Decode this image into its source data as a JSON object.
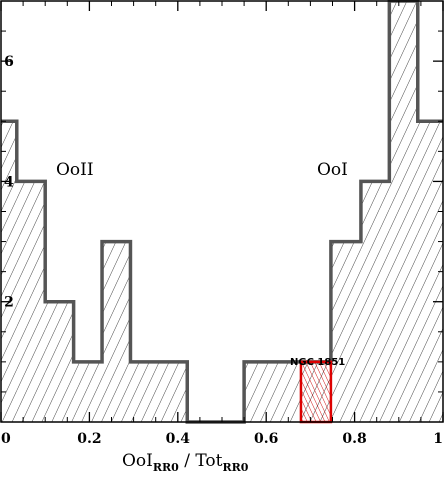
{
  "chart_data": {
    "type": "bar",
    "xlim": [
      0,
      1
    ],
    "ylim": [
      0,
      7.0
    ],
    "x_ticks": [
      0,
      0.2,
      0.4,
      0.6,
      0.8,
      1
    ],
    "x_tick_labels": [
      "0",
      "0.2",
      "0.4",
      "0.6",
      "0.8",
      "1"
    ],
    "y_ticks": [
      2,
      4,
      6
    ],
    "y_tick_labels": [
      "2",
      "4",
      "6"
    ],
    "xlabel": {
      "main1": "OoI",
      "sub1": "RR0",
      "sep": " / ",
      "main2": "Tot",
      "sub2": "RR0"
    },
    "series": [
      {
        "bin_edges": [
          0,
          0.0357,
          0.1,
          0.1643,
          0.2286,
          0.2929,
          0.4214,
          0.55,
          0.6786,
          0.7464,
          0.8143,
          0.8786,
          0.9429,
          1.0
        ],
        "values": [
          5,
          4,
          2,
          1,
          3,
          1,
          0,
          1,
          1,
          3,
          4,
          7,
          5
        ],
        "color": "#555555"
      },
      {
        "bin_edges": [
          0.6786,
          0.7464
        ],
        "values": [
          1
        ],
        "color": "#dd0000"
      }
    ],
    "annotations": [
      {
        "text": "OoII",
        "x": 0.05,
        "y": 4.5
      },
      {
        "text": "OoI",
        "x": 0.7,
        "y": 4.5
      },
      {
        "text": "NGC 1851",
        "x": 0.635,
        "y": 1.15
      }
    ]
  }
}
